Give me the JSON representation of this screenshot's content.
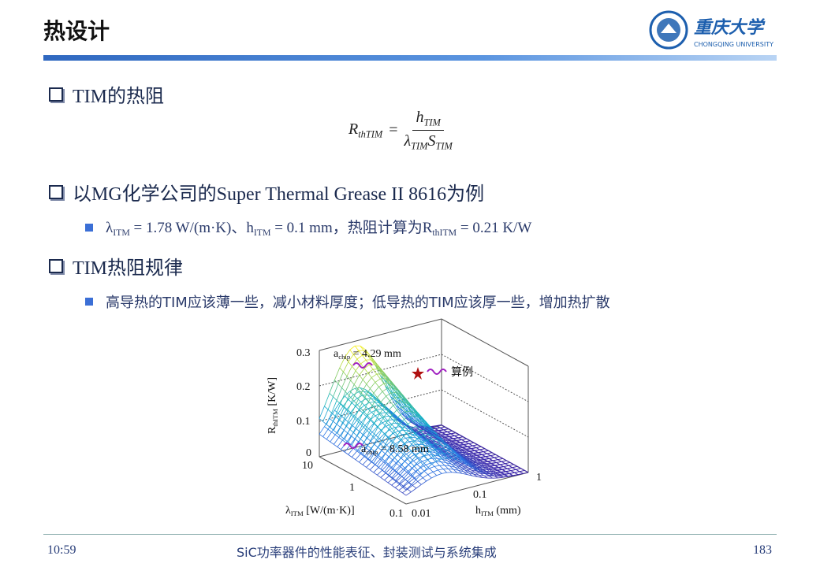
{
  "header": {
    "title": "热设计",
    "logo_name": "重庆大学",
    "logo_en": "CHONGQING UNIVERSITY"
  },
  "sections": [
    {
      "title": "TIM的热阻",
      "formula": {
        "lhs": [
          {
            "text": "R",
            "sub": "thTIM"
          }
        ],
        "eq": "=",
        "num": [
          {
            "text": "h",
            "sub": "TIM"
          }
        ],
        "den": [
          {
            "text": "λ",
            "sub": "TIM"
          },
          {
            "text": "S",
            "sub": "TIM"
          }
        ]
      }
    },
    {
      "title": "以MG化学公司的Super Thermal Grease II 8616为例",
      "item": [
        {
          "text": "λ",
          "sub": "ITM"
        },
        {
          "text": " = 1.78 W/(m·K)、h",
          "sub": "ITM"
        },
        {
          "text": " = 0.1 mm，热阻计算为R",
          "sub": "thITM"
        },
        {
          "text": " = 0.21 K/W"
        }
      ]
    },
    {
      "title": "TIM热阻规律",
      "item": [
        {
          "text": "高导热的TIM应该薄一些，减小材料厚度；低导热的TIM应该厚一些，增加热扩散"
        }
      ]
    }
  ],
  "figure": {
    "z_ticks": [
      "0.3",
      "0.2",
      "0.1",
      "0"
    ],
    "lambda_ticks": [
      "10",
      "1",
      "0.1"
    ],
    "h_ticks": [
      "0.01",
      "0.1",
      "1"
    ],
    "z_label": [
      {
        "text": "R",
        "sub": "thITM"
      },
      {
        "text": " [K/W]"
      }
    ],
    "lambda_label": [
      {
        "text": "λ",
        "sub": "ITM"
      },
      {
        "text": " [W/(m·K)]"
      }
    ],
    "h_label": [
      {
        "text": "h",
        "sub": "ITM"
      },
      {
        "text": " (mm)"
      }
    ],
    "annotations": [
      [
        {
          "text": "a",
          "sub": "chip"
        },
        {
          "text": " = 4.29 mm"
        }
      ],
      [
        {
          "text": "a",
          "sub": "chip"
        },
        {
          "text": " = 8.58 mm"
        }
      ],
      [
        {
          "text": "算例"
        }
      ]
    ]
  },
  "footer": {
    "time": "10:59",
    "course": "SiC功率器件的性能表征、封装测试与系统集成",
    "page": "183"
  }
}
